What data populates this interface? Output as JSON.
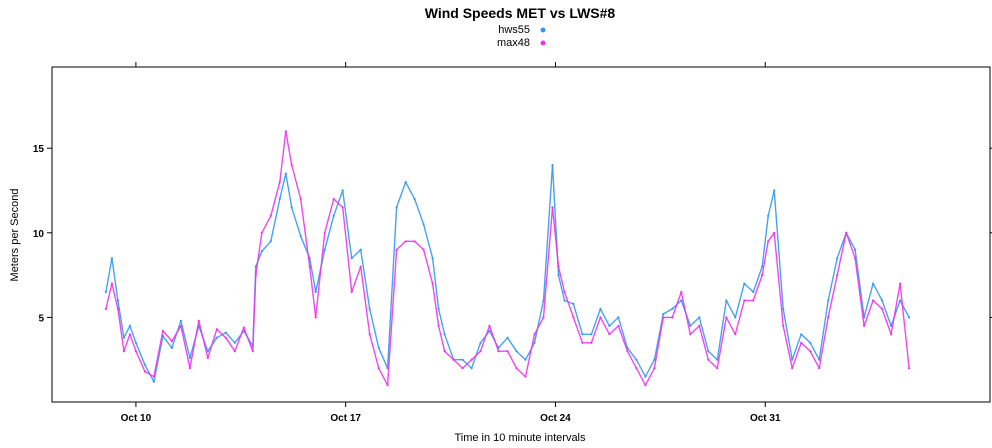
{
  "chart_data": {
    "type": "line",
    "title": "Wind Speeds MET vs LWS#8",
    "xlabel": "Time in 10 minute intervals",
    "ylabel": "Meters per Second",
    "x_ticks": [
      "Oct 10",
      "Oct 17",
      "Oct 24",
      "Oct 31"
    ],
    "x_tick_days": [
      10,
      17,
      24,
      31
    ],
    "x_range_days": [
      7.2,
      38.5
    ],
    "y_ticks": [
      5,
      10,
      15
    ],
    "ylim": [
      0,
      19.8
    ],
    "grid": false,
    "legend_position": "top-center",
    "series": [
      {
        "name": "hws55",
        "color": "#3399ee",
        "x": [
          9.0,
          9.2,
          9.4,
          9.6,
          9.8,
          10.0,
          10.3,
          10.6,
          10.9,
          11.2,
          11.5,
          11.8,
          12.1,
          12.4,
          12.7,
          13.0,
          13.3,
          13.6,
          13.9,
          14.0,
          14.2,
          14.5,
          14.8,
          15.0,
          15.2,
          15.5,
          15.8,
          16.0,
          16.3,
          16.6,
          16.9,
          17.2,
          17.5,
          17.8,
          18.1,
          18.4,
          18.7,
          19.0,
          19.3,
          19.6,
          19.9,
          20.1,
          20.3,
          20.6,
          20.9,
          21.2,
          21.5,
          21.8,
          22.1,
          22.4,
          22.7,
          23.0,
          23.3,
          23.6,
          23.9,
          24.1,
          24.3,
          24.6,
          24.9,
          25.2,
          25.5,
          25.8,
          26.1,
          26.4,
          26.7,
          27.0,
          27.3,
          27.6,
          27.9,
          28.2,
          28.5,
          28.8,
          29.1,
          29.4,
          29.7,
          30.0,
          30.3,
          30.6,
          30.9,
          31.1,
          31.3,
          31.6,
          31.9,
          32.2,
          32.5,
          32.8,
          33.1,
          33.4,
          33.7,
          34.0,
          34.3,
          34.6,
          34.9,
          35.2,
          35.5,
          35.8
        ],
        "y": [
          6.5,
          8.5,
          6.0,
          3.8,
          4.5,
          3.5,
          2.2,
          1.2,
          3.9,
          3.2,
          4.8,
          2.6,
          4.5,
          3.0,
          3.8,
          4.1,
          3.5,
          4.2,
          3.3,
          8.0,
          8.9,
          9.5,
          12.0,
          13.5,
          11.5,
          9.8,
          8.5,
          6.5,
          9.0,
          11.0,
          12.5,
          8.5,
          9.0,
          5.5,
          3.2,
          2.0,
          11.5,
          13.0,
          12.0,
          10.5,
          8.5,
          5.5,
          4.0,
          2.5,
          2.5,
          2.0,
          3.5,
          4.2,
          3.2,
          3.8,
          3.0,
          2.5,
          3.5,
          6.0,
          14.0,
          7.5,
          6.0,
          5.8,
          4.0,
          4.0,
          5.5,
          4.5,
          5.0,
          3.2,
          2.5,
          1.5,
          2.5,
          5.2,
          5.5,
          6.0,
          4.5,
          5.0,
          3.0,
          2.5,
          6.0,
          5.0,
          7.0,
          6.5,
          8.0,
          11.0,
          12.5,
          5.5,
          2.5,
          4.0,
          3.5,
          2.5,
          6.0,
          8.5,
          10.0,
          9.0,
          5.0,
          7.0,
          6.0,
          4.5,
          6.0,
          5.0
        ]
      },
      {
        "name": "max48",
        "color": "#ee33ee",
        "x": [
          9.0,
          9.2,
          9.4,
          9.6,
          9.8,
          10.0,
          10.3,
          10.6,
          10.9,
          11.2,
          11.5,
          11.8,
          12.1,
          12.4,
          12.7,
          13.0,
          13.3,
          13.6,
          13.9,
          14.0,
          14.2,
          14.5,
          14.8,
          15.0,
          15.2,
          15.5,
          15.8,
          16.0,
          16.3,
          16.6,
          16.9,
          17.2,
          17.5,
          17.8,
          18.1,
          18.4,
          18.7,
          19.0,
          19.3,
          19.6,
          19.9,
          20.1,
          20.3,
          20.6,
          20.9,
          21.2,
          21.5,
          21.8,
          22.1,
          22.4,
          22.7,
          23.0,
          23.3,
          23.6,
          23.9,
          24.1,
          24.3,
          24.6,
          24.9,
          25.2,
          25.5,
          25.8,
          26.1,
          26.4,
          26.7,
          27.0,
          27.3,
          27.6,
          27.9,
          28.2,
          28.5,
          28.8,
          29.1,
          29.4,
          29.7,
          30.0,
          30.3,
          30.6,
          30.9,
          31.1,
          31.3,
          31.6,
          31.9,
          32.2,
          32.5,
          32.8,
          33.1,
          33.4,
          33.7,
          34.0,
          34.3,
          34.6,
          34.9,
          35.2,
          35.5,
          35.8
        ],
        "y": [
          5.5,
          7.0,
          5.5,
          3.0,
          4.0,
          3.0,
          1.8,
          1.5,
          4.2,
          3.6,
          4.5,
          2.0,
          4.8,
          2.6,
          4.3,
          3.8,
          3.0,
          4.4,
          3.0,
          7.5,
          10.0,
          11.0,
          13.0,
          16.0,
          14.0,
          12.0,
          8.0,
          5.0,
          10.0,
          12.0,
          11.5,
          6.5,
          8.0,
          4.0,
          2.0,
          1.0,
          9.0,
          9.5,
          9.5,
          9.0,
          7.0,
          4.5,
          3.0,
          2.5,
          2.0,
          2.5,
          3.0,
          4.5,
          3.0,
          3.0,
          2.0,
          1.5,
          4.0,
          5.0,
          11.5,
          8.0,
          6.5,
          5.0,
          3.5,
          3.5,
          5.0,
          4.0,
          4.5,
          3.0,
          2.0,
          1.0,
          2.0,
          5.0,
          5.0,
          6.5,
          4.0,
          4.5,
          2.5,
          2.0,
          5.0,
          4.0,
          6.0,
          6.0,
          7.5,
          9.5,
          10.0,
          4.5,
          2.0,
          3.5,
          3.0,
          2.0,
          5.0,
          7.5,
          10.0,
          8.5,
          4.5,
          6.0,
          5.5,
          4.0,
          7.0,
          2.0
        ]
      }
    ]
  }
}
